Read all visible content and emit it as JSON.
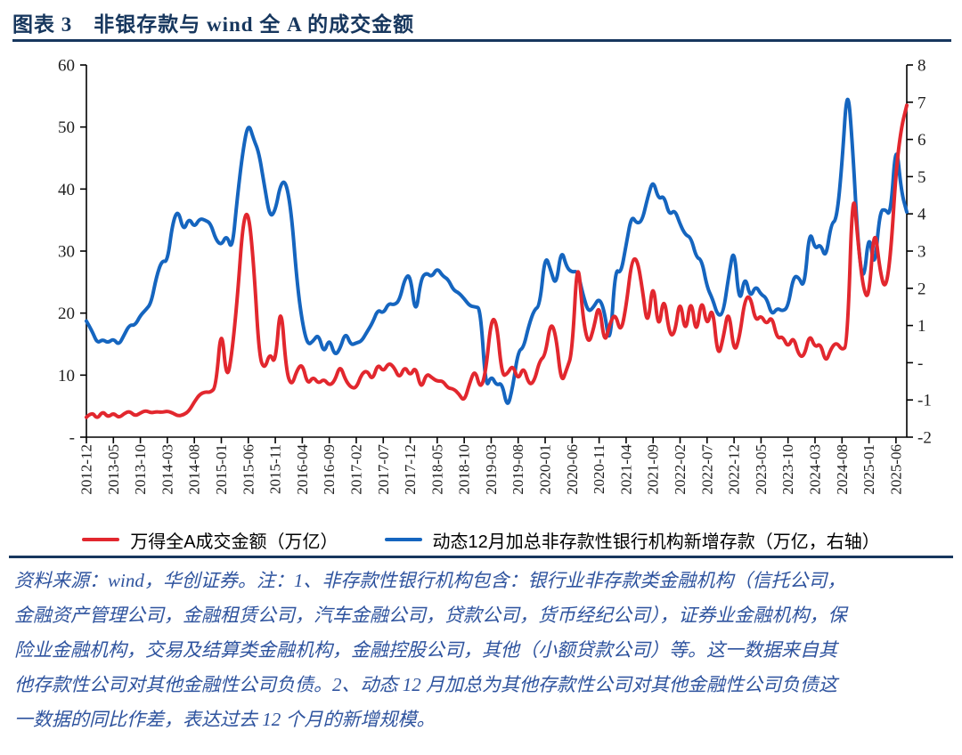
{
  "figure": {
    "title": "图表 3　非银存款与 wind 全 A 的成交金额",
    "note_lines": [
      "资料来源：wind，华创证券。注：1、非存款性银行机构包含：银行业非存款类金融机构（信托公司，",
      "金融资产管理公司，金融租赁公司，汽车金融公司，贷款公司，货币经纪公司），证券业金融机构，保",
      "险业金融机构，交易及结算类金融机构，金融控股公司，其他（小额贷款公司）等。这一数据来自其",
      "他存款性公司对其他金融性公司负债。2、动态 12 月加总为其他存款性公司对其他金融性公司负债这",
      "一数据的同比作差，表达过去 12 个月的新增规模。"
    ]
  },
  "colors": {
    "title_navy": "#17375E",
    "rule_navy": "#17375E",
    "note_blue": "#2E539E",
    "red_series": "#E2272E",
    "blue_series": "#1565BF",
    "axis_line": "#000000",
    "axis_text": "#1F1F1F"
  },
  "chart_data": {
    "type": "line",
    "x_start": "2012-12",
    "x_end": "2025-08",
    "x_interval": "monthly",
    "x_tick_step": 5,
    "x_tick_labels": [
      "2012-12",
      "2013-05",
      "2013-10",
      "2014-03",
      "2014-08",
      "2015-01",
      "2015-06",
      "2015-11",
      "2016-04",
      "2016-09",
      "2017-02",
      "2017-07",
      "2017-12",
      "2018-05",
      "2018-10",
      "2019-03",
      "2019-08",
      "2020-01",
      "2020-06",
      "2020-11",
      "2021-04",
      "2021-09",
      "2022-02",
      "2022-07",
      "2022-12",
      "2023-05",
      "2023-10",
      "2024-03",
      "2024-08",
      "2025-01",
      "2025-06"
    ],
    "left_axis": {
      "min": 0,
      "max": 60,
      "tick_labels": [
        "-",
        "10",
        "20",
        "30",
        "40",
        "50",
        "60"
      ]
    },
    "right_axis": {
      "min": -2,
      "max": 8,
      "tick_labels": [
        "-2",
        "-1",
        "-",
        "1",
        "2",
        "3",
        "4",
        "5",
        "6",
        "7",
        "8"
      ]
    },
    "grid": false,
    "legend_position": "bottom",
    "series": [
      {
        "name": "万得全A成交金额（万亿）",
        "axis": "left",
        "color_key": "red_series",
        "values": [
          3.2,
          4.1,
          2.9,
          4.2,
          3.2,
          3.9,
          3.1,
          3.8,
          4.2,
          3.4,
          3.9,
          4.3,
          3.9,
          4.1,
          4.0,
          4.2,
          3.9,
          3.4,
          3.6,
          4.2,
          5.7,
          6.9,
          7.3,
          7.2,
          8.1,
          18.4,
          8.8,
          13.7,
          22.7,
          34.7,
          36.7,
          28.0,
          13.1,
          10.8,
          13.7,
          11.5,
          22.3,
          10.8,
          8.1,
          10.8,
          11.9,
          8.4,
          9.8,
          8.6,
          9.4,
          8.3,
          9.0,
          11.7,
          9.2,
          8.0,
          7.9,
          10.2,
          10.8,
          9.1,
          11.9,
          10.5,
          12.0,
          11.3,
          9.4,
          11.5,
          9.8,
          11.5,
          7.6,
          10.3,
          9.6,
          9.0,
          9.1,
          7.9,
          7.8,
          7.0,
          5.7,
          8.7,
          11.0,
          7.6,
          10.5,
          19.1,
          18.8,
          9.8,
          10.2,
          11.7,
          9.1,
          11.5,
          8.4,
          9.0,
          12.4,
          13.1,
          18.7,
          16.5,
          8.5,
          11.0,
          13.5,
          29.9,
          19.1,
          14.8,
          17.5,
          21.9,
          14.8,
          18.4,
          20.0,
          16.7,
          21.0,
          28.4,
          29.0,
          24.0,
          17.3,
          25.8,
          16.7,
          23.2,
          16.5,
          16.5,
          22.7,
          16.2,
          22.9,
          16.0,
          22.8,
          17.5,
          21.5,
          12.6,
          16.0,
          21.0,
          13.4,
          16.0,
          22.3,
          22.8,
          18.6,
          19.7,
          18.1,
          19.6,
          15.8,
          16.3,
          14.4,
          16.3,
          13.1,
          13.0,
          16.7,
          14.4,
          15.2,
          11.9,
          14.4,
          15.3,
          14.0,
          14.8,
          41.5,
          31.0,
          23.5,
          22.3,
          34.5,
          27.0,
          23.5,
          29.0,
          43.0,
          50.0,
          53.5
        ]
      },
      {
        "name": "动态12月加总非存款性银行机构新增存款（万亿，右轴）",
        "axis": "right",
        "color_key": "blue_series",
        "values": [
          1.12,
          0.87,
          0.52,
          0.63,
          0.53,
          0.65,
          0.47,
          0.75,
          1.02,
          1.0,
          1.27,
          1.42,
          1.6,
          2.33,
          2.75,
          2.7,
          3.78,
          4.12,
          3.52,
          3.9,
          3.63,
          3.88,
          3.83,
          3.75,
          3.3,
          3.15,
          3.45,
          2.98,
          4.5,
          5.7,
          6.47,
          6.0,
          5.63,
          4.73,
          3.9,
          4.08,
          4.83,
          4.87,
          4.0,
          2.2,
          1.07,
          0.47,
          0.58,
          0.78,
          0.23,
          0.67,
          0.18,
          0.37,
          0.83,
          0.47,
          0.53,
          0.58,
          0.83,
          1.07,
          1.43,
          1.32,
          1.6,
          1.55,
          1.67,
          2.27,
          2.38,
          1.23,
          2.27,
          2.42,
          2.3,
          2.55,
          2.33,
          2.25,
          1.95,
          1.88,
          1.72,
          1.53,
          1.5,
          1.47,
          -0.73,
          -0.33,
          -0.62,
          -0.53,
          -1.25,
          -0.65,
          0.32,
          0.4,
          1.02,
          1.43,
          1.52,
          2.92,
          2.5,
          2.03,
          3.08,
          2.55,
          2.43,
          2.47,
          1.83,
          1.35,
          1.5,
          1.75,
          1.38,
          0.38,
          2.55,
          2.37,
          3.17,
          3.97,
          3.73,
          3.82,
          4.45,
          4.93,
          4.38,
          4.5,
          3.95,
          4.12,
          3.72,
          3.43,
          3.37,
          2.83,
          2.77,
          2.03,
          1.72,
          1.25,
          1.33,
          2.32,
          3.17,
          1.5,
          2.38,
          1.73,
          2.08,
          1.83,
          1.75,
          1.27,
          1.47,
          1.38,
          1.5,
          2.33,
          2.3,
          1.98,
          3.62,
          3.03,
          3.2,
          2.78,
          3.75,
          3.83,
          5.33,
          7.58,
          5.75,
          3.08,
          2.08,
          3.58,
          2.42,
          4.07,
          4.13,
          3.93,
          6.03,
          4.58,
          4.05
        ]
      }
    ]
  }
}
